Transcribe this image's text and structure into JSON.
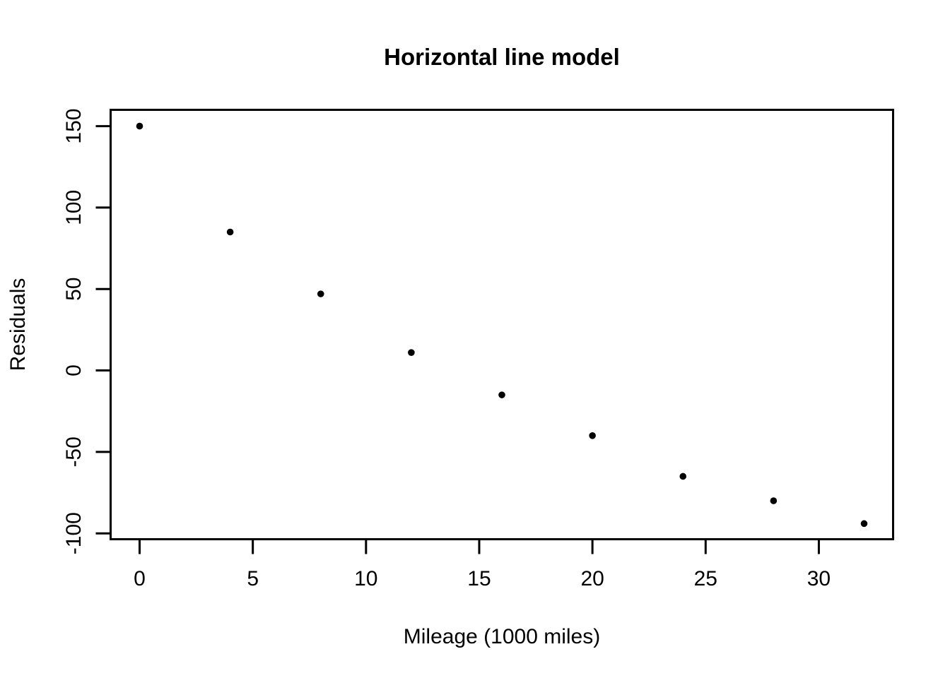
{
  "figure": {
    "background_color": "#FFFFFF",
    "foreground_color": "#000000"
  },
  "chart_data": {
    "type": "scatter",
    "title": "Horizontal line model",
    "xlabel": "Mileage (1000 miles)",
    "ylabel": "Residuals",
    "x": [
      0,
      4,
      8,
      12,
      16,
      20,
      24,
      28,
      32
    ],
    "y": [
      150,
      85,
      47,
      11,
      -15,
      -40,
      -65,
      -80,
      -94
    ],
    "x_ticks": [
      0,
      5,
      10,
      15,
      20,
      25,
      30
    ],
    "y_ticks": [
      -100,
      -50,
      0,
      50,
      100,
      150
    ],
    "xlim": [
      -1.28,
      33.28
    ],
    "ylim": [
      -103.6,
      160.0
    ],
    "grid": false,
    "marker": {
      "shape": "filled-circle",
      "color": "#000000",
      "radius_px": 4.8
    }
  }
}
